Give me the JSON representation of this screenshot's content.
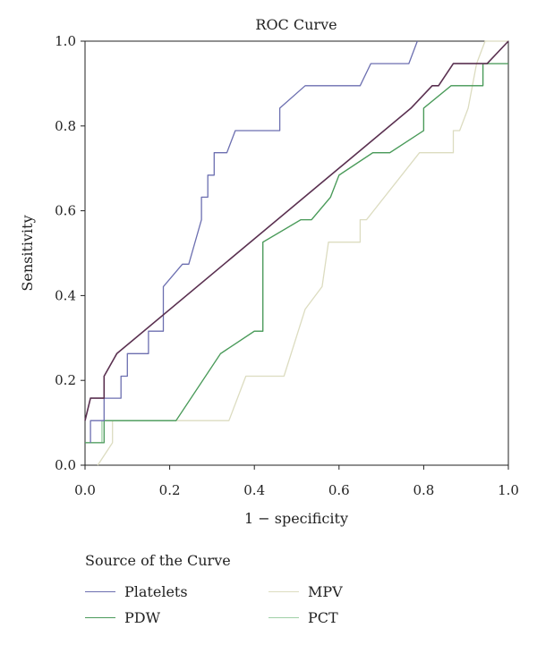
{
  "chart_data": {
    "type": "line",
    "title": "ROC Curve",
    "xlabel": "1 − specificity",
    "ylabel": "Sensitivity",
    "xlim": [
      0,
      1
    ],
    "ylim": [
      0,
      1
    ],
    "x_ticks": [
      "0.0",
      "0.2",
      "0.4",
      "0.6",
      "0.8",
      "1.0"
    ],
    "y_ticks": [
      "0.0",
      "0.2",
      "0.4",
      "0.6",
      "0.8",
      "1.0"
    ],
    "grid": false,
    "legend_title": "Source of the Curve",
    "legend_position": "bottom",
    "series": [
      {
        "name": "Platelets",
        "color": "#6c6fb0",
        "points": [
          [
            0.013,
            0.053
          ],
          [
            0.013,
            0.105
          ],
          [
            0.045,
            0.105
          ],
          [
            0.045,
            0.158
          ],
          [
            0.085,
            0.158
          ],
          [
            0.085,
            0.21
          ],
          [
            0.1,
            0.21
          ],
          [
            0.1,
            0.263
          ],
          [
            0.15,
            0.263
          ],
          [
            0.15,
            0.316
          ],
          [
            0.185,
            0.316
          ],
          [
            0.185,
            0.421
          ],
          [
            0.23,
            0.474
          ],
          [
            0.245,
            0.474
          ],
          [
            0.275,
            0.579
          ],
          [
            0.275,
            0.632
          ],
          [
            0.29,
            0.632
          ],
          [
            0.29,
            0.684
          ],
          [
            0.305,
            0.684
          ],
          [
            0.305,
            0.737
          ],
          [
            0.335,
            0.737
          ],
          [
            0.355,
            0.789
          ],
          [
            0.46,
            0.789
          ],
          [
            0.46,
            0.842
          ],
          [
            0.52,
            0.895
          ],
          [
            0.65,
            0.895
          ],
          [
            0.675,
            0.947
          ],
          [
            0.765,
            0.947
          ],
          [
            0.785,
            1.0
          ]
        ]
      },
      {
        "name": "PDW",
        "color": "#4a9a5a",
        "points": [
          [
            0.0,
            0.053
          ],
          [
            0.045,
            0.053
          ],
          [
            0.045,
            0.105
          ],
          [
            0.215,
            0.105
          ],
          [
            0.32,
            0.263
          ],
          [
            0.4,
            0.316
          ],
          [
            0.42,
            0.316
          ],
          [
            0.42,
            0.526
          ],
          [
            0.51,
            0.579
          ],
          [
            0.535,
            0.579
          ],
          [
            0.58,
            0.632
          ],
          [
            0.6,
            0.684
          ],
          [
            0.68,
            0.737
          ],
          [
            0.72,
            0.737
          ],
          [
            0.8,
            0.789
          ],
          [
            0.8,
            0.842
          ],
          [
            0.865,
            0.895
          ],
          [
            0.94,
            0.895
          ],
          [
            0.94,
            0.947
          ],
          [
            1.0,
            0.947
          ]
        ]
      },
      {
        "name": "MPV",
        "color": "#dcdcc0",
        "points": [
          [
            0.03,
            0.0
          ],
          [
            0.065,
            0.053
          ],
          [
            0.065,
            0.105
          ],
          [
            0.34,
            0.105
          ],
          [
            0.38,
            0.21
          ],
          [
            0.47,
            0.21
          ],
          [
            0.52,
            0.368
          ],
          [
            0.56,
            0.421
          ],
          [
            0.575,
            0.526
          ],
          [
            0.65,
            0.526
          ],
          [
            0.65,
            0.579
          ],
          [
            0.665,
            0.579
          ],
          [
            0.79,
            0.737
          ],
          [
            0.87,
            0.737
          ],
          [
            0.87,
            0.789
          ],
          [
            0.885,
            0.789
          ],
          [
            0.905,
            0.842
          ],
          [
            0.925,
            0.947
          ],
          [
            0.945,
            1.0
          ],
          [
            1.0,
            1.0
          ]
        ]
      },
      {
        "name": "PCT",
        "color": "#9fd0a6",
        "points": [
          [
            0.0,
            0.053
          ],
          [
            0.04,
            0.053
          ],
          [
            0.04,
            0.105
          ],
          [
            0.215,
            0.105
          ],
          [
            0.32,
            0.263
          ],
          [
            0.4,
            0.316
          ],
          [
            0.42,
            0.316
          ],
          [
            0.42,
            0.526
          ],
          [
            0.51,
            0.579
          ],
          [
            0.535,
            0.579
          ],
          [
            0.58,
            0.632
          ],
          [
            0.6,
            0.684
          ],
          [
            0.68,
            0.737
          ],
          [
            0.72,
            0.737
          ],
          [
            0.8,
            0.789
          ],
          [
            0.8,
            0.842
          ],
          [
            0.865,
            0.895
          ],
          [
            0.94,
            0.895
          ],
          [
            0.94,
            0.947
          ],
          [
            1.0,
            0.947
          ]
        ]
      },
      {
        "name": "",
        "color": "#5a3050",
        "points": [
          [
            0.0,
            0.105
          ],
          [
            0.013,
            0.158
          ],
          [
            0.045,
            0.158
          ],
          [
            0.045,
            0.21
          ],
          [
            0.075,
            0.263
          ],
          [
            0.77,
            0.842
          ],
          [
            0.82,
            0.895
          ],
          [
            0.835,
            0.895
          ],
          [
            0.87,
            0.947
          ],
          [
            0.95,
            0.947
          ],
          [
            1.0,
            1.0
          ]
        ]
      }
    ]
  }
}
